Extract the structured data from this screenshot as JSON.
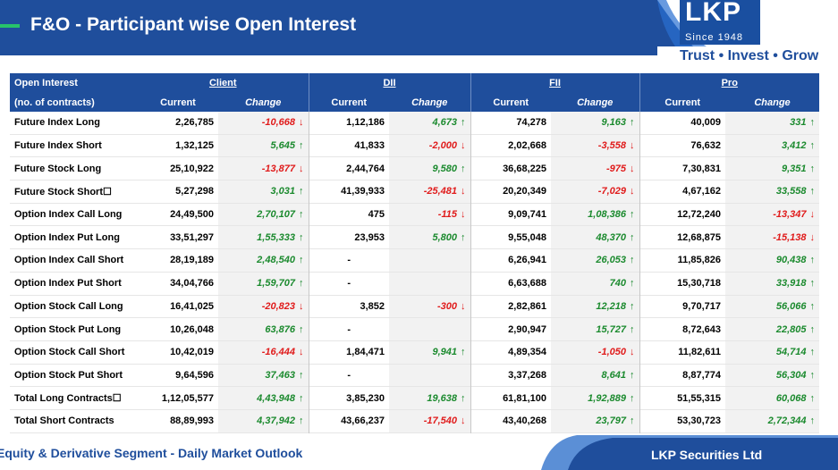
{
  "header": {
    "title": "F&O - Participant wise Open Interest",
    "logo": "LKP",
    "since": "Since 1948",
    "tagline": "Trust • Invest • Grow"
  },
  "table": {
    "label_header_line1": "Open Interest",
    "label_header_line2": "(no. of contracts)",
    "groups": [
      "Client",
      "DII",
      "FII",
      "Pro"
    ],
    "sub_current": "Current",
    "sub_change": "Change",
    "rows": [
      {
        "label": "Future Index Long",
        "cells": [
          [
            "2,26,785",
            "-10,668",
            "neg"
          ],
          [
            "1,12,186",
            "4,673",
            "pos"
          ],
          [
            "74,278",
            "9,163",
            "pos"
          ],
          [
            "40,009",
            "331",
            "pos"
          ]
        ]
      },
      {
        "label": "Future Index Short",
        "cells": [
          [
            "1,32,125",
            "5,645",
            "pos"
          ],
          [
            "41,833",
            "-2,000",
            "neg"
          ],
          [
            "2,02,668",
            "-3,558",
            "neg"
          ],
          [
            "76,632",
            "3,412",
            "pos"
          ]
        ]
      },
      {
        "label": "Future Stock Long",
        "cells": [
          [
            "25,10,922",
            "-13,877",
            "neg"
          ],
          [
            "2,44,764",
            "9,580",
            "pos"
          ],
          [
            "36,68,225",
            "-975",
            "neg"
          ],
          [
            "7,30,831",
            "9,351",
            "pos"
          ]
        ]
      },
      {
        "label": "Future Stock Short☐",
        "cells": [
          [
            "5,27,298",
            "3,031",
            "pos"
          ],
          [
            "41,39,933",
            "-25,481",
            "neg"
          ],
          [
            "20,20,349",
            "-7,029",
            "neg"
          ],
          [
            "4,67,162",
            "33,558",
            "pos"
          ]
        ]
      },
      {
        "label": "Option Index Call Long",
        "cells": [
          [
            "24,49,500",
            "2,70,107",
            "pos"
          ],
          [
            "475",
            "-115",
            "neg"
          ],
          [
            "9,09,741",
            "1,08,386",
            "pos"
          ],
          [
            "12,72,240",
            "-13,347",
            "neg"
          ]
        ]
      },
      {
        "label": "Option Index Put Long",
        "cells": [
          [
            "33,51,297",
            "1,55,333",
            "pos"
          ],
          [
            "23,953",
            "5,800",
            "pos"
          ],
          [
            "9,55,048",
            "48,370",
            "pos"
          ],
          [
            "12,68,875",
            "-15,138",
            "neg"
          ]
        ]
      },
      {
        "label": "Option Index Call Short",
        "cells": [
          [
            "28,19,189",
            "2,48,540",
            "pos"
          ],
          [
            "-",
            "",
            "none"
          ],
          [
            "6,26,941",
            "26,053",
            "pos"
          ],
          [
            "11,85,826",
            "90,438",
            "pos"
          ]
        ]
      },
      {
        "label": "Option Index Put Short",
        "cells": [
          [
            "34,04,766",
            "1,59,707",
            "pos"
          ],
          [
            "-",
            "",
            "none"
          ],
          [
            "6,63,688",
            "740",
            "pos"
          ],
          [
            "15,30,718",
            "33,918",
            "pos"
          ]
        ]
      },
      {
        "label": "Option Stock Call Long",
        "cells": [
          [
            "16,41,025",
            "-20,823",
            "neg"
          ],
          [
            "3,852",
            "-300",
            "neg"
          ],
          [
            "2,82,861",
            "12,218",
            "pos"
          ],
          [
            "9,70,717",
            "56,066",
            "pos"
          ]
        ]
      },
      {
        "label": "Option Stock Put Long",
        "cells": [
          [
            "10,26,048",
            "63,876",
            "pos"
          ],
          [
            "-",
            "",
            "none"
          ],
          [
            "2,90,947",
            "15,727",
            "pos"
          ],
          [
            "8,72,643",
            "22,805",
            "pos"
          ]
        ]
      },
      {
        "label": "Option Stock Call Short",
        "cells": [
          [
            "10,42,019",
            "-16,444",
            "neg"
          ],
          [
            "1,84,471",
            "9,941",
            "pos"
          ],
          [
            "4,89,354",
            "-1,050",
            "neg"
          ],
          [
            "11,82,611",
            "54,714",
            "pos"
          ]
        ]
      },
      {
        "label": "Option Stock Put Short",
        "cells": [
          [
            "9,64,596",
            "37,463",
            "pos"
          ],
          [
            "-",
            "",
            "none"
          ],
          [
            "3,37,268",
            "8,641",
            "pos"
          ],
          [
            "8,87,774",
            "56,304",
            "pos"
          ]
        ]
      },
      {
        "label": "Total Long Contracts☐",
        "cells": [
          [
            "1,12,05,577",
            "4,43,948",
            "pos"
          ],
          [
            "3,85,230",
            "19,638",
            "pos"
          ],
          [
            "61,81,100",
            "1,92,889",
            "pos"
          ],
          [
            "51,55,315",
            "60,068",
            "pos"
          ]
        ]
      },
      {
        "label": "Total Short Contracts",
        "cells": [
          [
            "88,89,993",
            "4,37,942",
            "pos"
          ],
          [
            "43,66,237",
            "-17,540",
            "neg"
          ],
          [
            "43,40,268",
            "23,797",
            "pos"
          ],
          [
            "53,30,723",
            "2,72,344",
            "pos"
          ]
        ]
      }
    ]
  },
  "footer": {
    "left_text": "Equity & Derivative Segment - Daily Market Outlook",
    "company": "LKP Securities Ltd"
  },
  "colors": {
    "brand_blue": "#1f4e9c",
    "positive": "#1b8a2e",
    "negative": "#e01b1b",
    "accent_green": "#27c36a"
  }
}
